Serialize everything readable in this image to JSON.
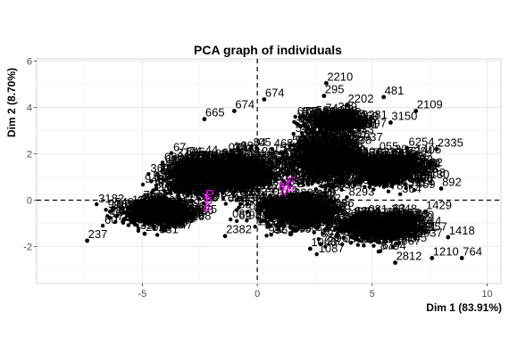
{
  "chart_data": {
    "type": "scatter",
    "title": "PCA graph of individuals",
    "xlabel": "Dim 1 (83.91%)",
    "ylabel": "Dim 2 (8.70%)",
    "xlim": [
      -9.6,
      10.6
    ],
    "ylim": [
      -3.6,
      6.1
    ],
    "x_ticks": [
      -5,
      0,
      5,
      10
    ],
    "y_ticks": [
      -2,
      0,
      2,
      4,
      6
    ],
    "reference_lines": {
      "x": 0,
      "y": 0,
      "style": "dashed"
    },
    "grid": true,
    "point_color": "#000000",
    "supplementary_color": "#ff00ff",
    "labeled_points": [
      {
        "label": "2210",
        "x": 3.0,
        "y": 5.05
      },
      {
        "label": "295",
        "x": 2.9,
        "y": 4.5
      },
      {
        "label": "481",
        "x": 5.5,
        "y": 4.45
      },
      {
        "label": "2202",
        "x": 3.9,
        "y": 4.1
      },
      {
        "label": "2109",
        "x": 6.9,
        "y": 3.85
      },
      {
        "label": "3281",
        "x": 4.5,
        "y": 3.4
      },
      {
        "label": "3150",
        "x": 5.8,
        "y": 3.35
      },
      {
        "label": "2335",
        "x": 7.8,
        "y": 2.2
      },
      {
        "label": "2162",
        "x": 6.9,
        "y": 1.35
      },
      {
        "label": "892",
        "x": 8.0,
        "y": 0.5
      },
      {
        "label": "1429",
        "x": 7.3,
        "y": -0.5
      },
      {
        "label": "1418",
        "x": 8.3,
        "y": -1.6
      },
      {
        "label": "764",
        "x": 8.9,
        "y": -2.5
      },
      {
        "label": "1210",
        "x": 7.6,
        "y": -2.5
      },
      {
        "label": "2812",
        "x": 6.0,
        "y": -2.7
      },
      {
        "label": "1040",
        "x": 2.3,
        "y": -2.1
      },
      {
        "label": "2382",
        "x": -1.4,
        "y": -1.55
      },
      {
        "label": "2628",
        "x": -4.9,
        "y": -1.45
      },
      {
        "label": "237",
        "x": -7.4,
        "y": -1.75
      },
      {
        "label": "665",
        "x": -2.3,
        "y": 3.5
      },
      {
        "label": "674",
        "x": -1.0,
        "y": 3.85
      },
      {
        "label": "674",
        "x": 0.3,
        "y": 4.35
      }
    ],
    "supplementary_points": [
      {
        "label": "P",
        "x": -2.1,
        "y": -0.05
      },
      {
        "label": "T",
        "x": -2.2,
        "y": -0.35
      },
      {
        "label": "M",
        "x": 1.15,
        "y": 0.35
      },
      {
        "label": "F",
        "x": 1.45,
        "y": 0.5
      }
    ]
  }
}
